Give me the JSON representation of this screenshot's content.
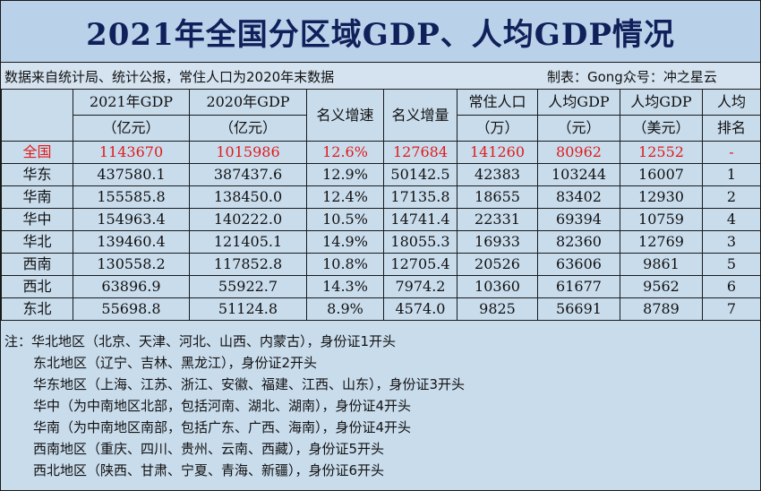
{
  "title": "2021年全国分区域GDP、人均GDP情况",
  "source_note": "数据来自统计局、统计公报，常住人口为2020年末数据",
  "author_note": "制表：Gong众号：冲之星云",
  "headers": [
    [
      "",
      ""
    ],
    [
      "2021年GDP",
      "（亿元）"
    ],
    [
      "2020年GDP",
      "（亿元）"
    ],
    [
      "名义增速",
      ""
    ],
    [
      "名义增量",
      ""
    ],
    [
      "常住人口",
      "（万）"
    ],
    [
      "人均GDP",
      "（元）"
    ],
    [
      "人均GDP",
      "（美元）"
    ],
    [
      "人均",
      "排名"
    ]
  ],
  "rows": [
    [
      "全国",
      "1143670",
      "1015986",
      "12.6%",
      "127684",
      "141260",
      "80962",
      "12552",
      "-"
    ],
    [
      "华东",
      "437580.1",
      "387437.6",
      "12.9%",
      "50142.5",
      "42383",
      "103244",
      "16007",
      "1"
    ],
    [
      "华南",
      "155585.8",
      "138450.0",
      "12.4%",
      "17135.8",
      "18655",
      "83402",
      "12930",
      "2"
    ],
    [
      "华中",
      "154963.4",
      "140222.0",
      "10.5%",
      "14741.4",
      "22331",
      "69394",
      "10759",
      "4"
    ],
    [
      "华北",
      "139460.4",
      "121405.1",
      "14.9%",
      "18055.3",
      "16933",
      "82360",
      "12769",
      "3"
    ],
    [
      "西南",
      "130558.2",
      "117852.8",
      "10.8%",
      "12705.4",
      "20526",
      "63606",
      "9861",
      "5"
    ],
    [
      "西北",
      "63896.9",
      "55922.7",
      "14.3%",
      "7974.2",
      "10360",
      "61677",
      "9562",
      "6"
    ],
    [
      "东北",
      "55698.8",
      "51124.8",
      "8.9%",
      "4574.0",
      "9825",
      "56691",
      "8789",
      "7"
    ]
  ],
  "notes": [
    "注：华北地区（北京、天津、河北、山西、内蒙古），身份证1开头",
    "东北地区（辽宁、吉林、黑龙江），身份证2开头",
    "华东地区（上海、江苏、浙江、安徽、福建、江西、山东），身份证3开头",
    "华中（为中南地区北部，包括河南、湖北、湖南），身份证4开头",
    "华南（为中南地区南部，包括广东、广西、海南），身份证4开头",
    "西南地区（重庆、四川、贵州、云南、西藏），身份证5开头",
    "西北地区（陕西、甘肃、宁夏、青海、新疆），身份证6开头"
  ],
  "colors": {
    "title_text": "#10205a",
    "national_row_text": "#e01b1b",
    "background": "#c9dcec"
  }
}
